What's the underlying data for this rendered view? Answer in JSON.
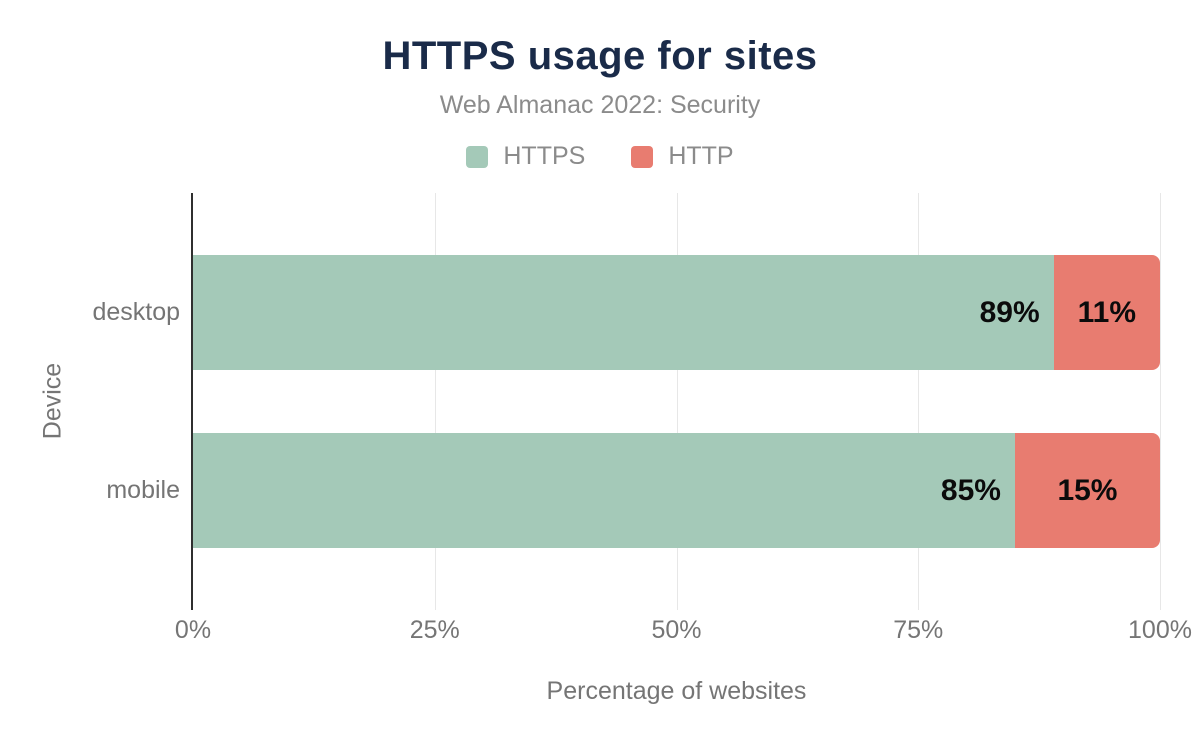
{
  "chart_data": {
    "type": "bar",
    "orientation": "horizontal-stacked",
    "title": "HTTPS usage for sites",
    "subtitle": "Web Almanac 2022: Security",
    "xlabel": "Percentage of websites",
    "ylabel": "Device",
    "categories": [
      "desktop",
      "mobile"
    ],
    "series": [
      {
        "name": "HTTPS",
        "color": "#a4c9b8",
        "values": [
          89,
          85
        ],
        "labels": [
          "89%",
          "85%"
        ]
      },
      {
        "name": "HTTP",
        "color": "#e87c70",
        "values": [
          11,
          15
        ],
        "labels": [
          "11%",
          "15%"
        ]
      }
    ],
    "xlim": [
      0,
      100
    ],
    "xtick_values": [
      0,
      25,
      50,
      75,
      100
    ],
    "xtick_labels": [
      "0%",
      "25%",
      "50%",
      "75%",
      "100%"
    ],
    "grid": "vertical",
    "legend_position": "top"
  },
  "colors": {
    "title": "#1a2b49",
    "subtitle": "#8b8b8b",
    "axis_text": "#757575",
    "gridline": "#e7e7e7",
    "axis_line": "#2f2f2f",
    "value_label": "#0b0b0b",
    "background": "#ffffff"
  }
}
